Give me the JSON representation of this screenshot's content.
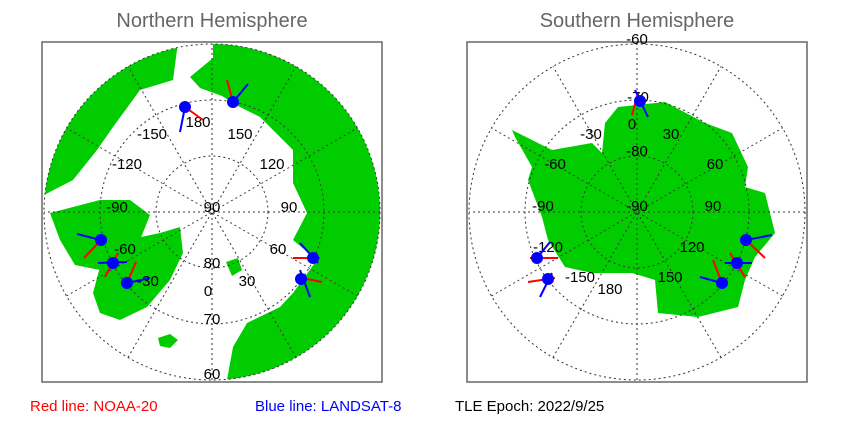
{
  "panels": [
    {
      "title": "Northern Hemisphere",
      "labels": [
        "-150",
        "180",
        "150",
        "-120",
        "120",
        "-90",
        "90",
        "90",
        "-60",
        "60",
        "-30",
        "80",
        "30",
        "0",
        "70",
        "60"
      ]
    },
    {
      "title": "Southern Hemisphere",
      "labels": [
        "-60",
        "-70",
        "0",
        "-30",
        "30",
        "-80",
        "-60",
        "60",
        "-90",
        "-90",
        "90",
        "-120",
        "120",
        "-150",
        "150",
        "180"
      ]
    }
  ],
  "legend": {
    "red": "Red line: NOAA-20",
    "blue": "Blue line: LANDSAT-8",
    "epoch": "TLE Epoch: 2022/9/25"
  },
  "colors": {
    "land": "#00cc00",
    "red_line": "#ff0000",
    "blue_line": "#0000ff",
    "marker": "#0000ff",
    "title": "#666666"
  }
}
